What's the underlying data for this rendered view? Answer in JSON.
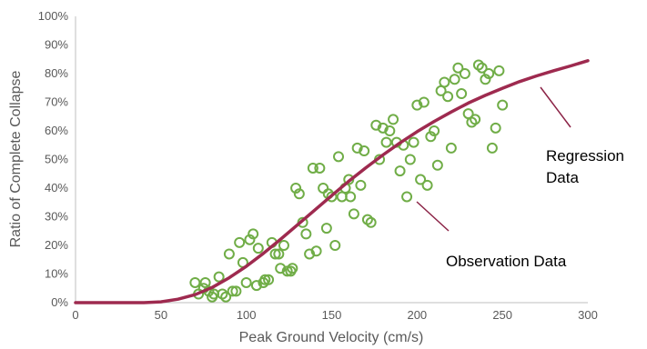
{
  "chart_data": {
    "type": "scatter",
    "xlabel": "Peak Ground Velocity (cm/s)",
    "ylabel": "Ratio of Complete Collapse",
    "xlim": [
      0,
      300
    ],
    "ylim": [
      0,
      1
    ],
    "x_ticks": [
      0,
      50,
      100,
      150,
      200,
      250,
      300
    ],
    "x_tick_labels": [
      "0",
      "50",
      "100",
      "150",
      "200",
      "250",
      "300"
    ],
    "y_ticks": [
      0,
      0.1,
      0.2,
      0.3,
      0.4,
      0.5,
      0.6,
      0.7,
      0.8,
      0.9,
      1.0
    ],
    "y_tick_labels": [
      "0%",
      "10%",
      "20%",
      "30%",
      "40%",
      "50%",
      "60%",
      "70%",
      "80%",
      "90%",
      "100%"
    ],
    "grid": false,
    "colors": {
      "observation": "#70ad47",
      "regression": "#9e2a4f",
      "leader": "#8b2346",
      "axis": "#595959"
    },
    "annotations": [
      {
        "text": "Regression",
        "points_to": "regression"
      },
      {
        "text": "Data",
        "points_to": "regression"
      },
      {
        "text": "Observation Data",
        "points_to": "observation"
      }
    ],
    "series": [
      {
        "key": "observation",
        "type": "scatter",
        "points": [
          [
            70,
            0.07
          ],
          [
            72,
            0.03
          ],
          [
            75,
            0.05
          ],
          [
            76,
            0.07
          ],
          [
            78,
            0.04
          ],
          [
            80,
            0.02
          ],
          [
            81,
            0.03
          ],
          [
            84,
            0.09
          ],
          [
            86,
            0.03
          ],
          [
            88,
            0.02
          ],
          [
            90,
            0.17
          ],
          [
            92,
            0.04
          ],
          [
            94,
            0.04
          ],
          [
            96,
            0.21
          ],
          [
            98,
            0.14
          ],
          [
            100,
            0.07
          ],
          [
            102,
            0.22
          ],
          [
            104,
            0.24
          ],
          [
            106,
            0.06
          ],
          [
            107,
            0.19
          ],
          [
            110,
            0.07
          ],
          [
            111,
            0.08
          ],
          [
            113,
            0.08
          ],
          [
            115,
            0.21
          ],
          [
            117,
            0.17
          ],
          [
            119,
            0.17
          ],
          [
            120,
            0.12
          ],
          [
            122,
            0.2
          ],
          [
            124,
            0.11
          ],
          [
            126,
            0.11
          ],
          [
            127,
            0.12
          ],
          [
            129,
            0.4
          ],
          [
            131,
            0.38
          ],
          [
            133,
            0.28
          ],
          [
            135,
            0.24
          ],
          [
            137,
            0.17
          ],
          [
            139,
            0.47
          ],
          [
            141,
            0.18
          ],
          [
            143,
            0.47
          ],
          [
            145,
            0.4
          ],
          [
            147,
            0.26
          ],
          [
            148,
            0.38
          ],
          [
            150,
            0.37
          ],
          [
            152,
            0.2
          ],
          [
            154,
            0.51
          ],
          [
            156,
            0.37
          ],
          [
            158,
            0.4
          ],
          [
            160,
            0.43
          ],
          [
            161,
            0.37
          ],
          [
            163,
            0.31
          ],
          [
            165,
            0.54
          ],
          [
            167,
            0.41
          ],
          [
            169,
            0.53
          ],
          [
            171,
            0.29
          ],
          [
            173,
            0.28
          ],
          [
            176,
            0.62
          ],
          [
            178,
            0.5
          ],
          [
            180,
            0.61
          ],
          [
            182,
            0.56
          ],
          [
            184,
            0.6
          ],
          [
            186,
            0.64
          ],
          [
            188,
            0.56
          ],
          [
            190,
            0.46
          ],
          [
            192,
            0.55
          ],
          [
            194,
            0.37
          ],
          [
            196,
            0.5
          ],
          [
            198,
            0.56
          ],
          [
            200,
            0.69
          ],
          [
            202,
            0.43
          ],
          [
            204,
            0.7
          ],
          [
            206,
            0.41
          ],
          [
            208,
            0.58
          ],
          [
            210,
            0.6
          ],
          [
            212,
            0.48
          ],
          [
            214,
            0.74
          ],
          [
            216,
            0.77
          ],
          [
            218,
            0.72
          ],
          [
            220,
            0.54
          ],
          [
            222,
            0.78
          ],
          [
            224,
            0.82
          ],
          [
            226,
            0.73
          ],
          [
            228,
            0.8
          ],
          [
            230,
            0.66
          ],
          [
            232,
            0.63
          ],
          [
            234,
            0.64
          ],
          [
            236,
            0.83
          ],
          [
            238,
            0.82
          ],
          [
            240,
            0.78
          ],
          [
            242,
            0.8
          ],
          [
            244,
            0.54
          ],
          [
            246,
            0.61
          ],
          [
            248,
            0.81
          ],
          [
            250,
            0.69
          ]
        ]
      },
      {
        "key": "regression",
        "type": "line",
        "x": [
          0,
          10,
          20,
          30,
          40,
          50,
          60,
          70,
          80,
          90,
          100,
          110,
          120,
          130,
          140,
          150,
          160,
          170,
          180,
          190,
          200,
          210,
          220,
          230,
          240,
          250,
          260,
          270,
          280,
          290,
          300
        ],
        "y": [
          0.0,
          0.0,
          0.0,
          0.0,
          0.0,
          0.003,
          0.012,
          0.028,
          0.053,
          0.087,
          0.127,
          0.172,
          0.221,
          0.272,
          0.323,
          0.374,
          0.424,
          0.471,
          0.516,
          0.558,
          0.597,
          0.633,
          0.666,
          0.697,
          0.724,
          0.749,
          0.772,
          0.792,
          0.81,
          0.827,
          0.845
        ]
      }
    ]
  }
}
